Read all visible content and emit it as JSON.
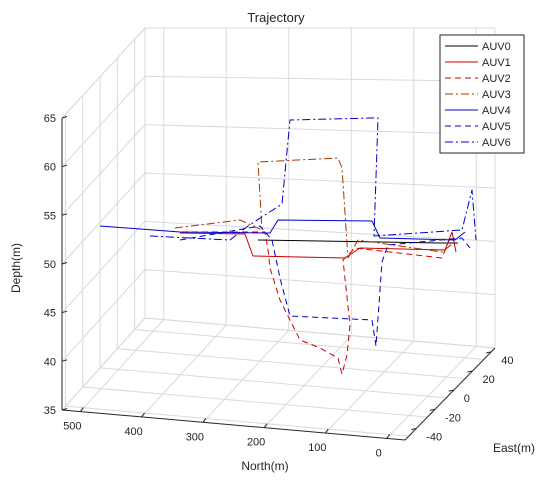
{
  "chart_data": {
    "type": "line",
    "title": "Trajectory",
    "xlabel": "North(m)",
    "ylabel": "East(m)",
    "zlabel": "Depth(m)",
    "x_ticks": [
      "500",
      "400",
      "300",
      "200",
      "100",
      "0"
    ],
    "y_ticks": [
      "40",
      "20",
      "0",
      "-20",
      "-40"
    ],
    "z_ticks": [
      "65",
      "60",
      "55",
      "50",
      "45",
      "40",
      "35"
    ],
    "zlim": [
      35,
      65
    ],
    "grid": true,
    "legend_position": "top-right",
    "series": [
      {
        "name": "AUV0",
        "color": "#000000",
        "style": "solid",
        "points": [
          [
            258,
            240
          ],
          [
            320,
            241
          ],
          [
            380,
            242
          ],
          [
            440,
            243
          ],
          [
            458,
            243
          ]
        ]
      },
      {
        "name": "AUV1",
        "color": "#cc0000",
        "style": "solid",
        "points": [
          [
            180,
            233
          ],
          [
            245,
            234
          ],
          [
            253,
            256
          ],
          [
            345,
            258
          ],
          [
            360,
            248
          ],
          [
            445,
            250
          ],
          [
            452,
            232
          ],
          [
            456,
            252
          ]
        ]
      },
      {
        "name": "AUV2",
        "color": "#cc0000",
        "style": "dash",
        "points": [
          [
            182,
            232
          ],
          [
            265,
            232
          ],
          [
            268,
            250
          ],
          [
            270,
            268
          ],
          [
            280,
            300
          ],
          [
            300,
            340
          ],
          [
            320,
            348
          ],
          [
            338,
            358
          ],
          [
            342,
            374
          ],
          [
            347,
            355
          ],
          [
            350,
            325
          ],
          [
            343,
            260
          ],
          [
            355,
            248
          ],
          [
            442,
            258
          ],
          [
            450,
            238
          ]
        ]
      },
      {
        "name": "AUV3",
        "color": "#aa3300",
        "style": "dashdot",
        "points": [
          [
            175,
            228
          ],
          [
            240,
            220
          ],
          [
            262,
            230
          ],
          [
            258,
            162
          ],
          [
            338,
            158
          ],
          [
            342,
            168
          ],
          [
            348,
            258
          ],
          [
            358,
            240
          ],
          [
            442,
            252
          ],
          [
            452,
            244
          ]
        ]
      },
      {
        "name": "AUV4",
        "color": "#0000cc",
        "style": "solid",
        "points": [
          [
            100,
            226
          ],
          [
            180,
            232
          ],
          [
            270,
            233
          ],
          [
            278,
            220
          ],
          [
            372,
            221
          ],
          [
            380,
            238
          ],
          [
            455,
            240
          ],
          [
            465,
            232
          ]
        ]
      },
      {
        "name": "AUV5",
        "color": "#0000cc",
        "style": "dash",
        "points": [
          [
            180,
            240
          ],
          [
            260,
            226
          ],
          [
            272,
            240
          ],
          [
            280,
            278
          ],
          [
            290,
            316
          ],
          [
            372,
            320
          ],
          [
            376,
            346
          ],
          [
            382,
            262
          ],
          [
            388,
            245
          ],
          [
            462,
            238
          ],
          [
            470,
            248
          ]
        ]
      },
      {
        "name": "AUV6",
        "color": "#0000cc",
        "style": "dashdot",
        "points": [
          [
            150,
            236
          ],
          [
            230,
            240
          ],
          [
            248,
            226
          ],
          [
            282,
            204
          ],
          [
            290,
            120
          ],
          [
            372,
            118
          ],
          [
            378,
            118
          ],
          [
            374,
            236
          ],
          [
            462,
            230
          ],
          [
            472,
            190
          ],
          [
            476,
            240
          ]
        ]
      }
    ]
  }
}
